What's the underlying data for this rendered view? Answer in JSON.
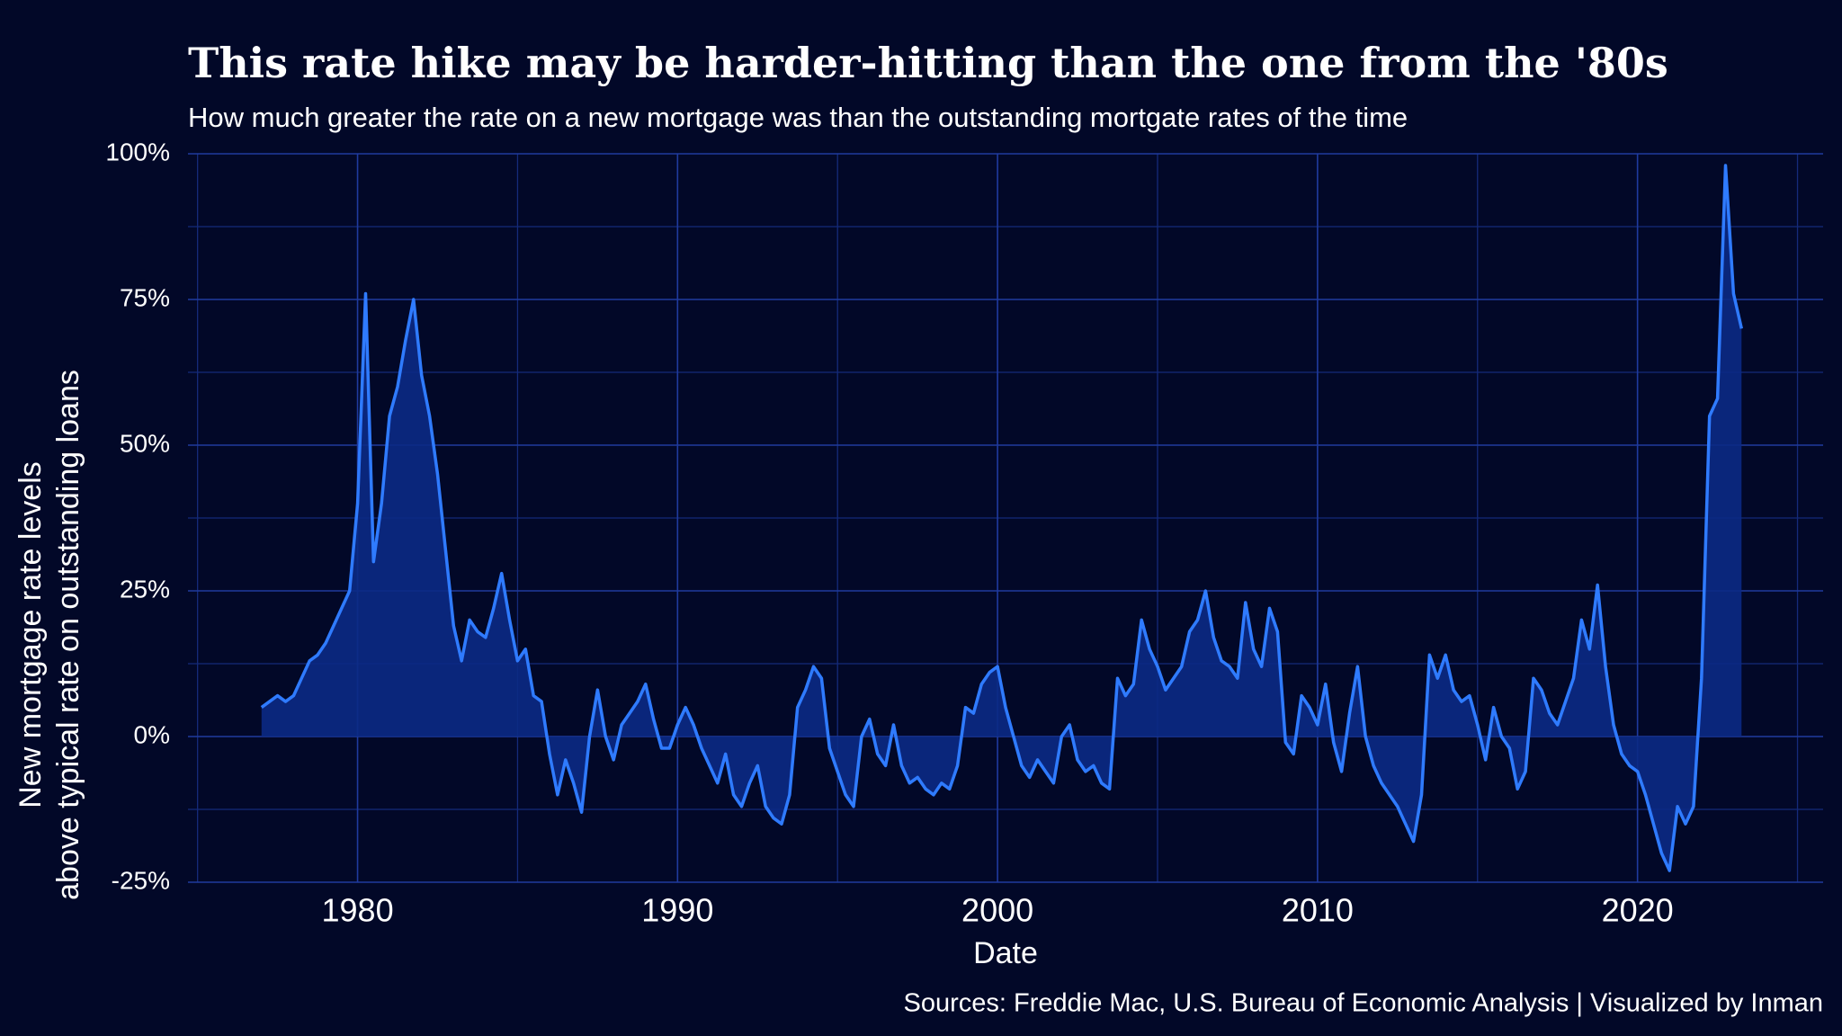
{
  "chart_data": {
    "type": "area",
    "title": "This rate hike may be harder-hitting than the one from the '80s",
    "subtitle": "How much greater the rate on a new mortgage was than the outstanding mortgate rates of the time",
    "xlabel": "Date",
    "ylabel": [
      "New mortgage rate levels",
      "above typical rate on outstanding loans"
    ],
    "source": "Sources: Freddie Mac, U.S. Bureau of Economic Analysis | Visualized by Inman",
    "color": "#2f7bff",
    "area_color": "#0b2a84",
    "x": [
      1977,
      1977.25,
      1977.5,
      1977.75,
      1978,
      1978.25,
      1978.5,
      1978.75,
      1979,
      1979.25,
      1979.5,
      1979.75,
      1980,
      1980.25,
      1980.5,
      1980.75,
      1981,
      1981.25,
      1981.5,
      1981.75,
      1982,
      1982.25,
      1982.5,
      1982.75,
      1983,
      1983.25,
      1983.5,
      1983.75,
      1984,
      1984.25,
      1984.5,
      1984.75,
      1985,
      1985.25,
      1985.5,
      1985.75,
      1986,
      1986.25,
      1986.5,
      1986.75,
      1987,
      1987.25,
      1987.5,
      1987.75,
      1988,
      1988.25,
      1988.5,
      1988.75,
      1989,
      1989.25,
      1989.5,
      1989.75,
      1990,
      1990.25,
      1990.5,
      1990.75,
      1991,
      1991.25,
      1991.5,
      1991.75,
      1992,
      1992.25,
      1992.5,
      1992.75,
      1993,
      1993.25,
      1993.5,
      1993.75,
      1994,
      1994.25,
      1994.5,
      1994.75,
      1995,
      1995.25,
      1995.5,
      1995.75,
      1996,
      1996.25,
      1996.5,
      1996.75,
      1997,
      1997.25,
      1997.5,
      1997.75,
      1998,
      1998.25,
      1998.5,
      1998.75,
      1999,
      1999.25,
      1999.5,
      1999.75,
      2000,
      2000.25,
      2000.5,
      2000.75,
      2001,
      2001.25,
      2001.5,
      2001.75,
      2002,
      2002.25,
      2002.5,
      2002.75,
      2003,
      2003.25,
      2003.5,
      2003.75,
      2004,
      2004.25,
      2004.5,
      2004.75,
      2005,
      2005.25,
      2005.5,
      2005.75,
      2006,
      2006.25,
      2006.5,
      2006.75,
      2007,
      2007.25,
      2007.5,
      2007.75,
      2008,
      2008.25,
      2008.5,
      2008.75,
      2009,
      2009.25,
      2009.5,
      2009.75,
      2010,
      2010.25,
      2010.5,
      2010.75,
      2011,
      2011.25,
      2011.5,
      2011.75,
      2012,
      2012.25,
      2012.5,
      2012.75,
      2013,
      2013.25,
      2013.5,
      2013.75,
      2014,
      2014.25,
      2014.5,
      2014.75,
      2015,
      2015.25,
      2015.5,
      2015.75,
      2016,
      2016.25,
      2016.5,
      2016.75,
      2017,
      2017.25,
      2017.5,
      2017.75,
      2018,
      2018.25,
      2018.5,
      2018.75,
      2019,
      2019.25,
      2019.5,
      2019.75,
      2020,
      2020.25,
      2020.5,
      2020.75,
      2021,
      2021.25,
      2021.5,
      2021.75,
      2022,
      2022.25,
      2022.5,
      2022.75,
      2023,
      2023.25
    ],
    "values": [
      5,
      6,
      7,
      6,
      7,
      10,
      13,
      14,
      16,
      19,
      22,
      25,
      40,
      76,
      30,
      40,
      55,
      60,
      68,
      75,
      62,
      55,
      45,
      32,
      19,
      13,
      20,
      18,
      17,
      22,
      28,
      20,
      13,
      15,
      7,
      6,
      -3,
      -10,
      -4,
      -8,
      -13,
      0,
      8,
      0,
      -4,
      2,
      4,
      6,
      9,
      3,
      -2,
      -2,
      2,
      5,
      2,
      -2,
      -5,
      -8,
      -3,
      -10,
      -12,
      -8,
      -5,
      -12,
      -14,
      -15,
      -10,
      5,
      8,
      12,
      10,
      -2,
      -6,
      -10,
      -12,
      0,
      3,
      -3,
      -5,
      2,
      -5,
      -8,
      -7,
      -9,
      -10,
      -8,
      -9,
      -5,
      5,
      4,
      9,
      11,
      12,
      5,
      0,
      -5,
      -7,
      -4,
      -6,
      -8,
      0,
      2,
      -4,
      -6,
      -5,
      -8,
      -9,
      10,
      7,
      9,
      20,
      15,
      12,
      8,
      10,
      12,
      18,
      20,
      25,
      17,
      13,
      12,
      10,
      23,
      15,
      12,
      22,
      18,
      -1,
      -3,
      7,
      5,
      2,
      9,
      -1,
      -6,
      4,
      12,
      0,
      -5,
      -8,
      -10,
      -12,
      -15,
      -18,
      -10,
      14,
      10,
      14,
      8,
      6,
      7,
      2,
      -4,
      5,
      0,
      -2,
      -9,
      -6,
      10,
      8,
      4,
      2,
      6,
      10,
      20,
      15,
      26,
      12,
      2,
      -3,
      -5,
      -6,
      -10,
      -15,
      -20,
      -23,
      -12,
      -15,
      -12,
      10,
      55,
      58,
      98,
      76,
      70
    ],
    "xlim": [
      1974.7,
      2025.8
    ],
    "xticks": [
      1980,
      1990,
      2000,
      2010,
      2020
    ],
    "minor_xticks": [
      1975,
      1985,
      1995,
      2005,
      2015,
      2025
    ],
    "ylim": [
      -25,
      100
    ],
    "yticks": [
      {
        "value": -25,
        "label": "-25%"
      },
      {
        "value": 0,
        "label": "0%"
      },
      {
        "value": 25,
        "label": "25%"
      },
      {
        "value": 50,
        "label": "50%"
      },
      {
        "value": 75,
        "label": "75%"
      },
      {
        "value": 100,
        "label": "100%"
      }
    ],
    "minor_yticks": [
      -12.5,
      12.5,
      37.5,
      62.5,
      87.5
    ],
    "grid": true
  }
}
